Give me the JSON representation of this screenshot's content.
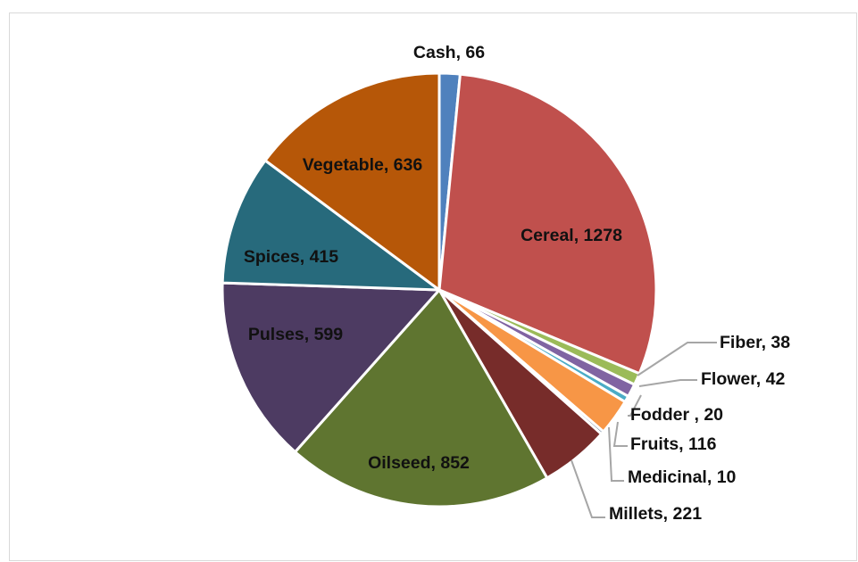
{
  "chart_data": {
    "type": "pie",
    "title": "",
    "start_angle_deg": 0,
    "direction": "clockwise",
    "slices": [
      {
        "label": "Cash",
        "value": 66,
        "display": "Cash, 66",
        "color": "#4f81bd"
      },
      {
        "label": "Cereal",
        "value": 1278,
        "display": "Cereal, 1278",
        "color": "#c0504d"
      },
      {
        "label": "Fiber",
        "value": 38,
        "display": "Fiber, 38",
        "color": "#9bbb59"
      },
      {
        "label": "Flower",
        "value": 42,
        "display": "Flower, 42",
        "color": "#8064a2"
      },
      {
        "label": "Fodder",
        "value": 20,
        "display": "Fodder , 20",
        "color": "#4bacc6"
      },
      {
        "label": "Fruits",
        "value": 116,
        "display": "Fruits, 116",
        "color": "#f79646"
      },
      {
        "label": "Medicinal",
        "value": 10,
        "display": "Medicinal, 10",
        "color": "#2c4d75"
      },
      {
        "label": "Millets",
        "value": 221,
        "display": "Millets, 221",
        "color": "#772c2a"
      },
      {
        "label": "Oilseed",
        "value": 852,
        "display": "Oilseed, 852",
        "color": "#5f7530"
      },
      {
        "label": "Pulses",
        "value": 599,
        "display": "Pulses, 599",
        "color": "#4d3b62"
      },
      {
        "label": "Spices",
        "value": 415,
        "display": "Spices, 415",
        "color": "#276a7c"
      },
      {
        "label": "Vegetable",
        "value": 636,
        "display": "Vegetable, 636",
        "color": "#b65708"
      }
    ]
  }
}
